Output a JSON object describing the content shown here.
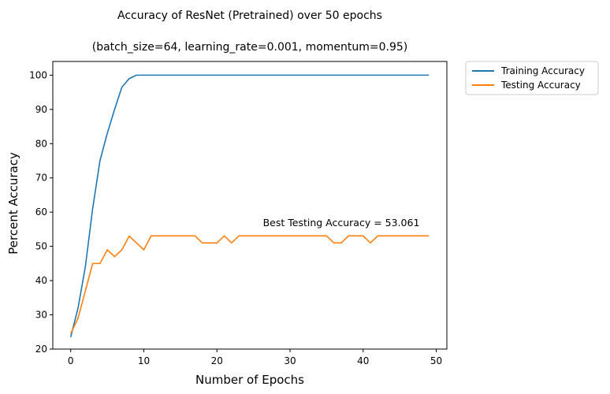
{
  "chart_data": {
    "type": "line",
    "title": "Accuracy of ResNet (Pretrained) over 50 epochs",
    "subtitle": "(batch_size=64, learning_rate=0.001, momentum=0.95)",
    "xlabel": "Number of Epochs",
    "ylabel": "Percent Accuracy",
    "xlim": [
      -2.45,
      51.45
    ],
    "ylim": [
      20,
      104
    ],
    "xticks": [
      0,
      10,
      20,
      30,
      40,
      50
    ],
    "yticks": [
      20,
      30,
      40,
      50,
      60,
      70,
      80,
      90,
      100
    ],
    "grid": false,
    "legend_position": "outside-top-right",
    "annotation": "Best Testing Accuracy = 53.061",
    "x": [
      0,
      1,
      2,
      3,
      4,
      5,
      6,
      7,
      8,
      9,
      10,
      11,
      12,
      13,
      14,
      15,
      16,
      17,
      18,
      19,
      20,
      21,
      22,
      23,
      24,
      25,
      26,
      27,
      28,
      29,
      30,
      31,
      32,
      33,
      34,
      35,
      36,
      37,
      38,
      39,
      40,
      41,
      42,
      43,
      44,
      45,
      46,
      47,
      48,
      49
    ],
    "series": [
      {
        "name": "Training Accuracy",
        "color": "#1f77b4",
        "values": [
          23.5,
          32,
          44,
          61,
          75,
          83,
          90,
          96.5,
          99,
          100,
          100,
          100,
          100,
          100,
          100,
          100,
          100,
          100,
          100,
          100,
          100,
          100,
          100,
          100,
          100,
          100,
          100,
          100,
          100,
          100,
          100,
          100,
          100,
          100,
          100,
          100,
          100,
          100,
          100,
          100,
          100,
          100,
          100,
          100,
          100,
          100,
          100,
          100,
          100,
          100
        ]
      },
      {
        "name": "Testing Accuracy",
        "color": "#ff7f0e",
        "values": [
          24.5,
          29,
          37,
          45,
          45,
          49,
          47,
          49,
          53,
          51,
          49,
          53.061,
          53.061,
          53.061,
          53.061,
          53.061,
          53.061,
          53.061,
          51,
          51,
          51,
          53.061,
          51,
          53.061,
          53.061,
          53.061,
          53.061,
          53.061,
          53.061,
          53.061,
          53.061,
          53.061,
          53.061,
          53.061,
          53.061,
          53.061,
          51,
          51,
          53.061,
          53.061,
          53.061,
          51,
          53.061,
          53.061,
          53.061,
          53.061,
          53.061,
          53.061,
          53.061,
          53.061
        ]
      }
    ]
  }
}
